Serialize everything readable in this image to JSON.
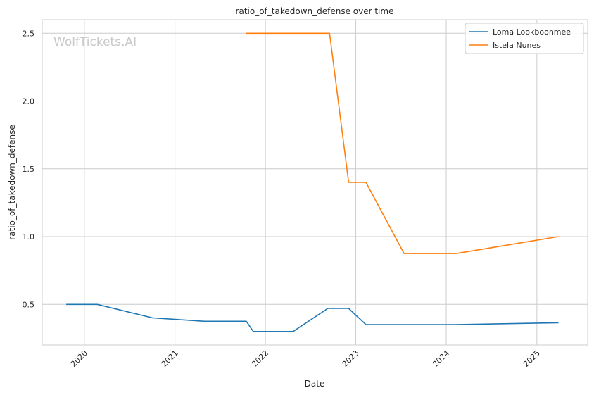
{
  "chart_data": {
    "type": "line",
    "title": "ratio_of_takedown_defense over time",
    "xlabel": "Date",
    "ylabel": "ratio_of_takedown_defense",
    "watermark": "WolfTickets.AI",
    "x_ticks": [
      "2020",
      "2021",
      "2022",
      "2023",
      "2024",
      "2025"
    ],
    "y_ticks": [
      "0.5",
      "1.0",
      "1.5",
      "2.0",
      "2.5"
    ],
    "xlim": [
      "2019-07-15",
      "2025-07-25"
    ],
    "ylim": [
      0.2,
      2.6
    ],
    "grid": true,
    "legend_position": "top-right",
    "series": [
      {
        "name": "Loma Lookboonmee",
        "color": "#1f77b4",
        "points": [
          [
            "2019-10-20",
            0.5
          ],
          [
            "2020-02-22",
            0.5
          ],
          [
            "2020-10-03",
            0.4
          ],
          [
            "2021-05-01",
            0.375
          ],
          [
            "2021-10-16",
            0.375
          ],
          [
            "2021-11-13",
            0.3
          ],
          [
            "2022-04-23",
            0.3
          ],
          [
            "2022-09-10",
            0.47
          ],
          [
            "2022-12-03",
            0.47
          ],
          [
            "2023-02-11",
            0.35
          ],
          [
            "2024-02-03",
            0.35
          ],
          [
            "2025-03-29",
            0.364
          ]
        ]
      },
      {
        "name": "Istela Nunes",
        "color": "#ff7f0e",
        "points": [
          [
            "2021-10-16",
            2.5
          ],
          [
            "2022-09-17",
            2.5
          ],
          [
            "2022-12-03",
            1.4
          ],
          [
            "2023-02-11",
            1.4
          ],
          [
            "2023-07-15",
            0.875
          ],
          [
            "2024-02-10",
            0.875
          ],
          [
            "2025-03-29",
            1.0
          ]
        ]
      }
    ]
  }
}
